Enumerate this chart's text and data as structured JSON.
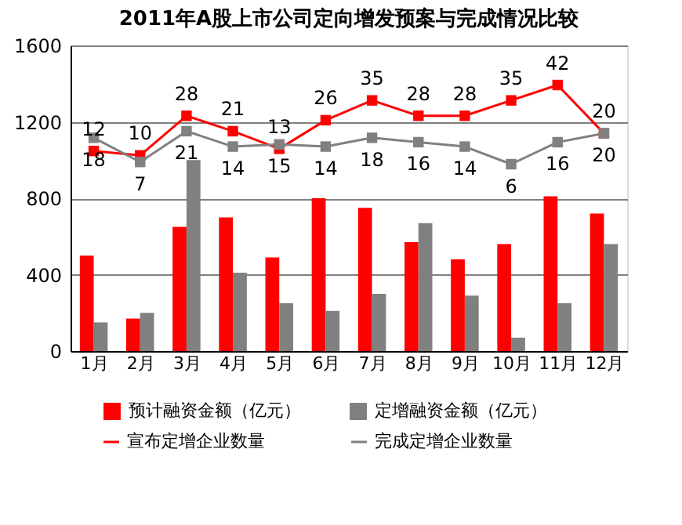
{
  "chart_data": {
    "type": "bar",
    "title": "2011年A股上市公司定向增发预案与完成情况比较",
    "categories": [
      "1月",
      "2月",
      "3月",
      "4月",
      "5月",
      "6月",
      "7月",
      "8月",
      "9月",
      "10月",
      "11月",
      "12月"
    ],
    "series": [
      {
        "name": "预计融资金额（亿元）",
        "color": "#ff0000",
        "values": [
          500,
          170,
          650,
          700,
          490,
          800,
          750,
          570,
          480,
          560,
          810,
          720
        ]
      },
      {
        "name": "定增融资金额（亿元）",
        "color": "#808080",
        "values": [
          150,
          200,
          1000,
          410,
          250,
          210,
          300,
          670,
          290,
          70,
          250,
          560
        ]
      },
      {
        "name": "宣布定增企业数量",
        "type": "line",
        "axis": "y2",
        "color": "#ff0000",
        "values": [
          12,
          10,
          28,
          21,
          13,
          26,
          35,
          28,
          28,
          35,
          42,
          20
        ],
        "value_labels": [
          "12",
          "10",
          "28",
          "21",
          "13",
          "26",
          "35",
          "28",
          "28",
          "35",
          "42",
          "20"
        ]
      },
      {
        "name": "完成定增企业数量",
        "type": "line",
        "axis": "y2",
        "color": "#808080",
        "values": [
          18,
          7,
          21,
          14,
          15,
          14,
          18,
          16,
          14,
          6,
          16,
          20
        ],
        "value_labels": [
          "18",
          "7",
          "21",
          "14",
          "15",
          "14",
          "18",
          "16",
          "14",
          "6",
          "16",
          "20"
        ]
      }
    ],
    "ylim": [
      0,
      1600
    ],
    "yticks": [
      0,
      400,
      800,
      1200,
      1600
    ],
    "y2lim": [
      -79,
      60
    ],
    "grid": "y",
    "legend": "bottom",
    "marker": "square",
    "line_style": "solid"
  }
}
